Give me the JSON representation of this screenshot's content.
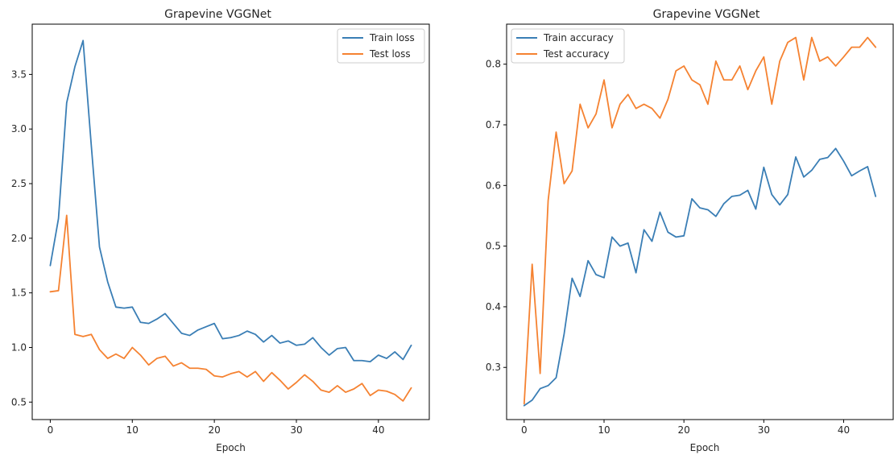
{
  "colors": {
    "train": "#3a7eb5",
    "test": "#f58231"
  },
  "chart_data": [
    {
      "type": "line",
      "title": "Grapevine VGGNet",
      "xlabel": "Epoch",
      "ylabel": "",
      "xlim": [
        -2.2,
        46.2
      ],
      "ylim": [
        0.34,
        3.96
      ],
      "xticks": [
        0,
        10,
        20,
        30,
        40
      ],
      "yticks": [
        0.5,
        1.0,
        1.5,
        2.0,
        2.5,
        3.0,
        3.5
      ],
      "ytick_labels": [
        "0.5",
        "1.0",
        "1.5",
        "2.0",
        "2.5",
        "3.0",
        "3.5"
      ],
      "legend_position": "top-right",
      "x": [
        0,
        1,
        2,
        3,
        4,
        5,
        6,
        7,
        8,
        9,
        10,
        11,
        12,
        13,
        14,
        15,
        16,
        17,
        18,
        19,
        20,
        21,
        22,
        23,
        24,
        25,
        26,
        27,
        28,
        29,
        30,
        31,
        32,
        33,
        34,
        35,
        36,
        37,
        38,
        39,
        40,
        41,
        42,
        43,
        44
      ],
      "series": [
        {
          "name": "Train loss",
          "color_key": "train",
          "values": [
            1.75,
            2.18,
            3.24,
            3.57,
            3.81,
            2.85,
            1.92,
            1.6,
            1.37,
            1.36,
            1.37,
            1.23,
            1.22,
            1.26,
            1.31,
            1.22,
            1.13,
            1.11,
            1.16,
            1.19,
            1.22,
            1.08,
            1.09,
            1.11,
            1.15,
            1.12,
            1.05,
            1.11,
            1.04,
            1.06,
            1.02,
            1.03,
            1.09,
            1.0,
            0.93,
            0.99,
            1.0,
            0.88,
            0.88,
            0.87,
            0.93,
            0.9,
            0.96,
            0.89,
            1.02
          ]
        },
        {
          "name": "Test loss",
          "color_key": "test",
          "values": [
            1.51,
            1.52,
            2.21,
            1.12,
            1.1,
            1.12,
            0.98,
            0.9,
            0.94,
            0.9,
            1.0,
            0.93,
            0.84,
            0.9,
            0.92,
            0.83,
            0.86,
            0.81,
            0.81,
            0.8,
            0.74,
            0.73,
            0.76,
            0.78,
            0.73,
            0.78,
            0.69,
            0.77,
            0.7,
            0.62,
            0.68,
            0.75,
            0.69,
            0.61,
            0.59,
            0.65,
            0.59,
            0.62,
            0.67,
            0.56,
            0.61,
            0.6,
            0.57,
            0.51,
            0.63
          ]
        }
      ]
    },
    {
      "type": "line",
      "title": "Grapevine VGGNet",
      "xlabel": "Epoch",
      "ylabel": "",
      "xlim": [
        -2.2,
        46.2
      ],
      "ylim": [
        0.214,
        0.866
      ],
      "xticks": [
        0,
        10,
        20,
        30,
        40
      ],
      "yticks": [
        0.3,
        0.4,
        0.5,
        0.6,
        0.7,
        0.8
      ],
      "ytick_labels": [
        "0.3",
        "0.4",
        "0.5",
        "0.6",
        "0.7",
        "0.8"
      ],
      "legend_position": "top-left",
      "x": [
        0,
        1,
        2,
        3,
        4,
        5,
        6,
        7,
        8,
        9,
        10,
        11,
        12,
        13,
        14,
        15,
        16,
        17,
        18,
        19,
        20,
        21,
        22,
        23,
        24,
        25,
        26,
        27,
        28,
        29,
        30,
        31,
        32,
        33,
        34,
        35,
        36,
        37,
        38,
        39,
        40,
        41,
        42,
        43,
        44
      ],
      "series": [
        {
          "name": "Train accuracy",
          "color_key": "train",
          "values": [
            0.237,
            0.246,
            0.265,
            0.27,
            0.283,
            0.355,
            0.447,
            0.417,
            0.476,
            0.453,
            0.448,
            0.515,
            0.5,
            0.505,
            0.456,
            0.527,
            0.508,
            0.556,
            0.523,
            0.515,
            0.517,
            0.578,
            0.563,
            0.56,
            0.549,
            0.57,
            0.582,
            0.584,
            0.592,
            0.561,
            0.63,
            0.585,
            0.568,
            0.585,
            0.647,
            0.614,
            0.625,
            0.643,
            0.646,
            0.661,
            0.64,
            0.616,
            0.624,
            0.631,
            0.582
          ]
        },
        {
          "name": "Test accuracy",
          "color_key": "test",
          "values": [
            0.24,
            0.47,
            0.29,
            0.575,
            0.688,
            0.603,
            0.624,
            0.734,
            0.695,
            0.718,
            0.774,
            0.695,
            0.734,
            0.75,
            0.727,
            0.734,
            0.727,
            0.711,
            0.742,
            0.789,
            0.797,
            0.774,
            0.766,
            0.734,
            0.805,
            0.774,
            0.774,
            0.797,
            0.758,
            0.789,
            0.812,
            0.734,
            0.805,
            0.836,
            0.844,
            0.774,
            0.844,
            0.805,
            0.812,
            0.797,
            0.812,
            0.828,
            0.828,
            0.844,
            0.828
          ]
        }
      ]
    }
  ]
}
